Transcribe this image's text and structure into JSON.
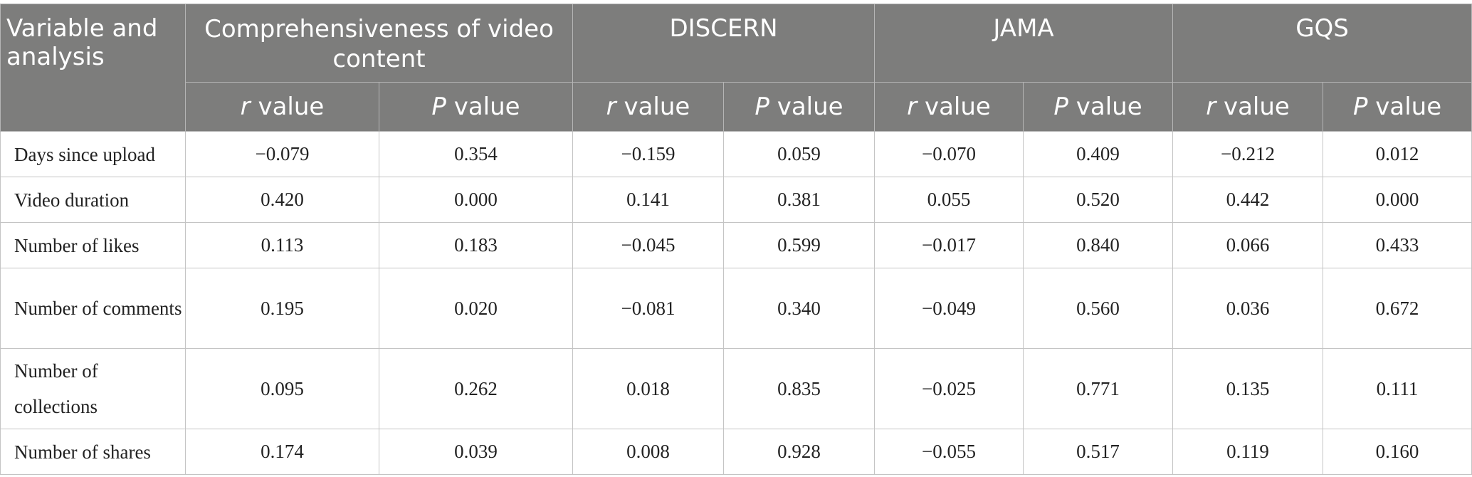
{
  "header": {
    "variable": "Variable and analysis",
    "groups": [
      "Comprehensiveness of video content",
      "DISCERN",
      "JAMA",
      "GQS"
    ],
    "sub_r_italic": "r",
    "sub_p_italic": "P",
    "sub_suffix": " value"
  },
  "rows": [
    {
      "label": "Days since upload",
      "values": [
        "−0.079",
        "0.354",
        "−0.159",
        "0.059",
        "−0.070",
        "0.409",
        "−0.212",
        "0.012"
      ]
    },
    {
      "label": "Video duration",
      "values": [
        "0.420",
        "0.000",
        "0.141",
        "0.381",
        "0.055",
        "0.520",
        "0.442",
        "0.000"
      ]
    },
    {
      "label": "Number of likes",
      "values": [
        "0.113",
        "0.183",
        "−0.045",
        "0.599",
        "−0.017",
        "0.840",
        "0.066",
        "0.433"
      ]
    },
    {
      "label": "Number of comments",
      "values": [
        "0.195",
        "0.020",
        "−0.081",
        "0.340",
        "−0.049",
        "0.560",
        "0.036",
        "0.672"
      ]
    },
    {
      "label": "Number of collections",
      "values": [
        "0.095",
        "0.262",
        "0.018",
        "0.835",
        "−0.025",
        "0.771",
        "0.135",
        "0.111"
      ]
    },
    {
      "label": "Number of shares",
      "values": [
        "0.174",
        "0.039",
        "0.008",
        "0.928",
        "−0.055",
        "0.517",
        "0.119",
        "0.160"
      ]
    }
  ]
}
